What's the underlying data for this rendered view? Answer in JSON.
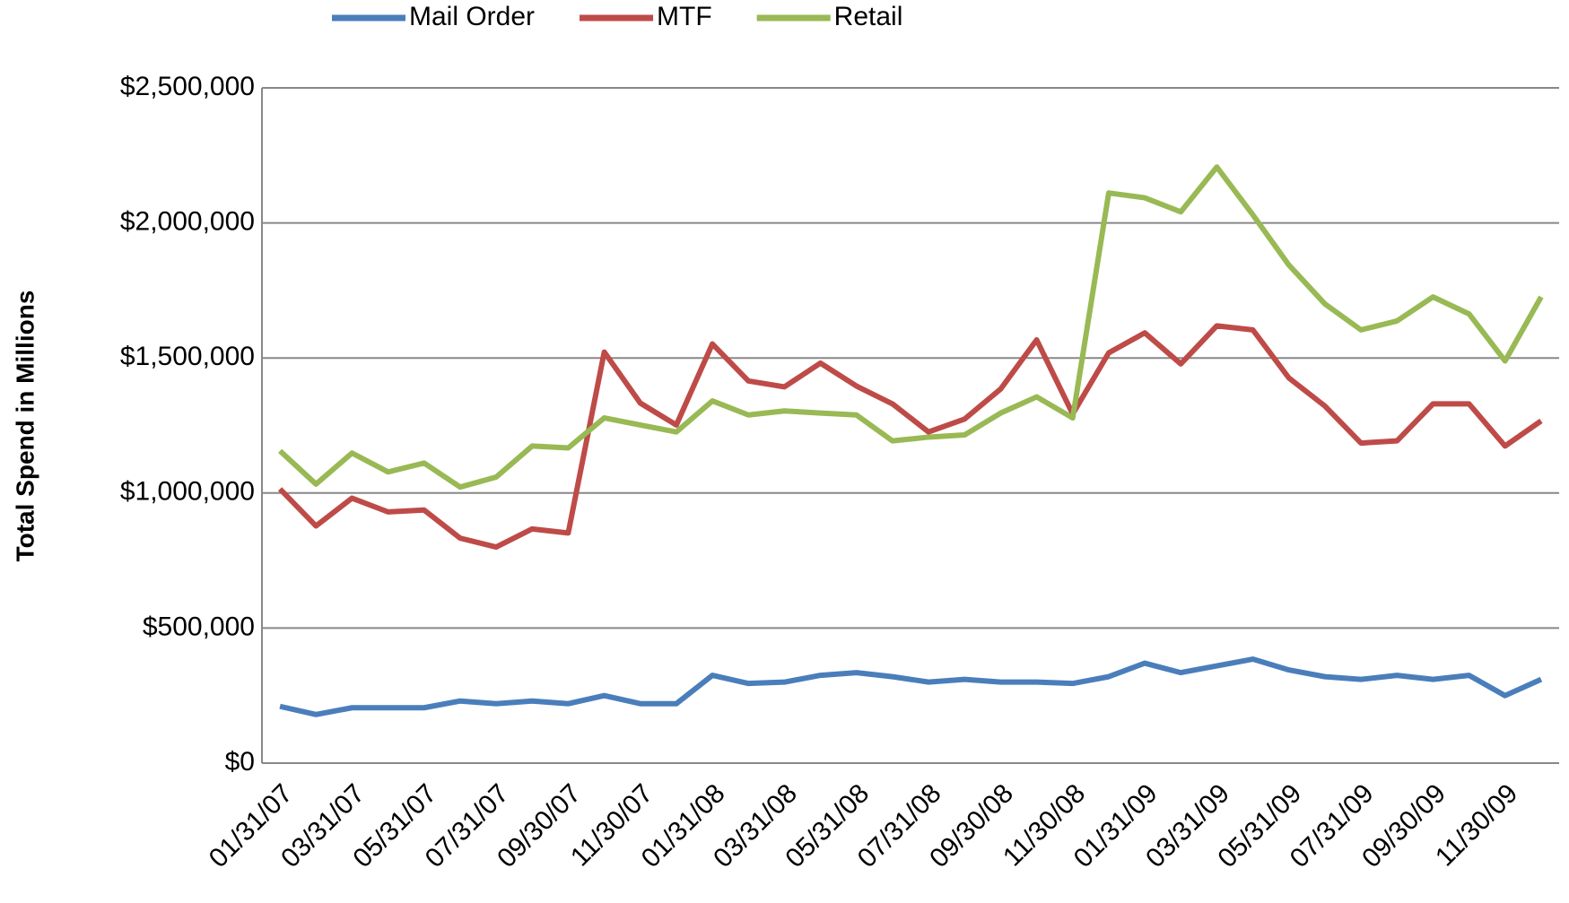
{
  "chart_data": {
    "type": "line",
    "y_label": "Total Spend in Millions",
    "categories": [
      "01/31/07",
      null,
      "03/31/07",
      null,
      "05/31/07",
      null,
      "07/31/07",
      null,
      "09/30/07",
      null,
      "11/30/07",
      null,
      "01/31/08",
      null,
      "03/31/08",
      null,
      "05/31/08",
      null,
      "07/31/08",
      null,
      "09/30/08",
      null,
      "11/30/08",
      null,
      "01/31/09",
      null,
      "03/31/09",
      null,
      "05/31/09",
      null,
      "07/31/09",
      null,
      "09/30/09",
      null,
      "11/30/09",
      null
    ],
    "series": [
      {
        "name": "Mail Order",
        "color": "#4a7ebb",
        "values": [
          210000,
          180000,
          205000,
          205000,
          205000,
          230000,
          220000,
          230000,
          220000,
          250000,
          220000,
          220000,
          325000,
          295000,
          300000,
          325000,
          335000,
          320000,
          300000,
          310000,
          300000,
          300000,
          295000,
          320000,
          370000,
          335000,
          360000,
          385000,
          345000,
          320000,
          310000,
          325000,
          310000,
          325000,
          250000,
          310000
        ]
      },
      {
        "name": "MTF",
        "color": "#be4b48",
        "values": [
          1015000,
          878000,
          981000,
          930000,
          937000,
          833000,
          800000,
          867000,
          852000,
          1522000,
          1333000,
          1252000,
          1552000,
          1415000,
          1393000,
          1481000,
          1396000,
          1330000,
          1226000,
          1274000,
          1385000,
          1567000,
          1293000,
          1519000,
          1593000,
          1478000,
          1619000,
          1604000,
          1426000,
          1322000,
          1185000,
          1193000,
          1330000,
          1330000,
          1174000,
          1267000
        ]
      },
      {
        "name": "Retail",
        "color": "#98b954",
        "values": [
          1156000,
          1033000,
          1148000,
          1078000,
          1111000,
          1022000,
          1059000,
          1174000,
          1167000,
          1278000,
          1252000,
          1226000,
          1341000,
          1289000,
          1304000,
          1296000,
          1289000,
          1193000,
          1207000,
          1215000,
          1296000,
          1356000,
          1278000,
          2111000,
          2093000,
          2041000,
          2207000,
          2030000,
          1844000,
          1700000,
          1604000,
          1637000,
          1726000,
          1663000,
          1489000,
          1726000
        ]
      }
    ],
    "ylim": [
      0,
      2500000
    ],
    "yticks": [
      {
        "value": 0,
        "label": "$0"
      },
      {
        "value": 500000,
        "label": "$500,000"
      },
      {
        "value": 1000000,
        "label": "$1,000,000"
      },
      {
        "value": 1500000,
        "label": "$1,500,000"
      },
      {
        "value": 2000000,
        "label": "$2,000,000"
      },
      {
        "value": 2500000,
        "label": "$2,500,000"
      }
    ],
    "grid": true,
    "legend": "top"
  }
}
